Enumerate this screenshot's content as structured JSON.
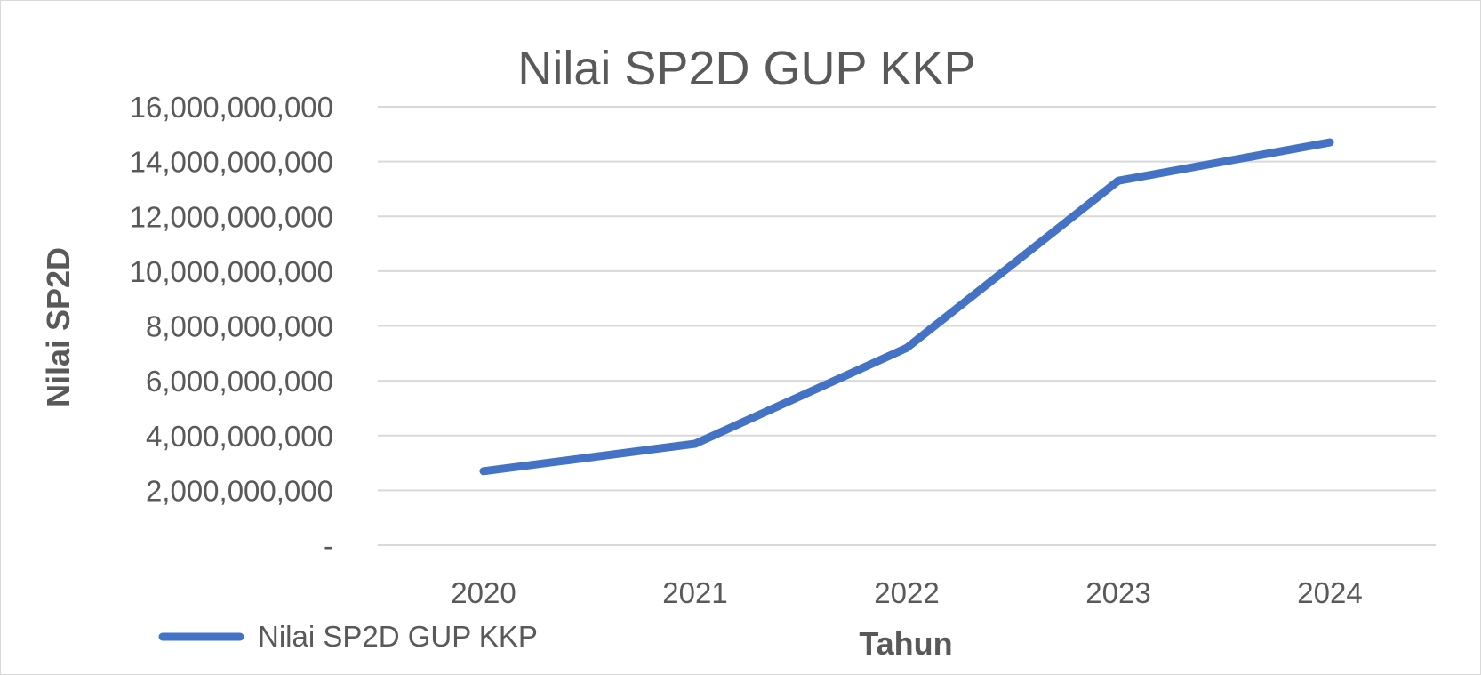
{
  "chart_data": {
    "type": "line",
    "title": "Nilai SP2D GUP KKP",
    "xlabel": "Tahun",
    "ylabel": "Nilai SP2D",
    "categories": [
      "2020",
      "2021",
      "2022",
      "2023",
      "2024"
    ],
    "series": [
      {
        "name": "Nilai SP2D GUP KKP",
        "color": "#4472c4",
        "values": [
          2700000000,
          3700000000,
          7200000000,
          13300000000,
          14700000000
        ]
      }
    ],
    "ylim": [
      0,
      16000000000
    ],
    "yticks": [
      0,
      2000000000,
      4000000000,
      6000000000,
      8000000000,
      10000000000,
      12000000000,
      14000000000,
      16000000000
    ],
    "ytick_labels": [
      "-",
      "2,000,000,000",
      "4,000,000,000",
      "6,000,000,000",
      "8,000,000,000",
      "10,000,000,000",
      "12,000,000,000",
      "14,000,000,000",
      "16,000,000,000"
    ],
    "grid": true,
    "legend": "bottom-left"
  }
}
